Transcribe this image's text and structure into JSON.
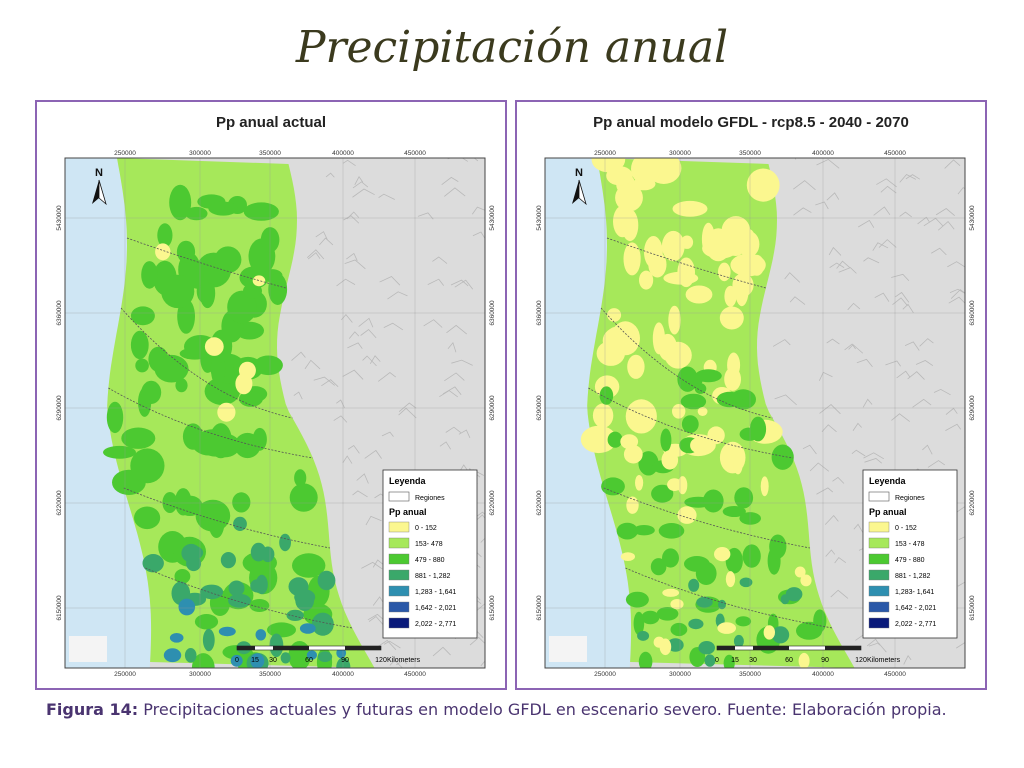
{
  "slide": {
    "title": "Precipitación anual"
  },
  "panels": [
    {
      "title": "Pp anual actual",
      "scenario": "actual",
      "x_ticks": [
        "250000",
        "300000",
        "350000",
        "400000",
        "450000"
      ],
      "y_ticks": [
        "5430000",
        "6360000",
        "6290000",
        "6220000",
        "6150000"
      ],
      "north_label": "N",
      "legend": {
        "title": "Leyenda",
        "regions_label": "Regiones",
        "section": "Pp anual",
        "classes": [
          "0 - 152",
          "153- 478",
          "479 - 880",
          "881 - 1,282",
          "1,283 - 1,641",
          "1,642 - 2,021",
          "2,022 - 2,771"
        ]
      },
      "scale_bar": {
        "ticks": [
          "0",
          "15",
          "30",
          "60",
          "90",
          "120"
        ],
        "unit": "Kilometers"
      }
    },
    {
      "title": "Pp anual modelo GFDL - rcp8.5 - 2040 - 2070",
      "scenario": "future",
      "x_ticks": [
        "250000",
        "300000",
        "350000",
        "400000",
        "450000"
      ],
      "y_ticks": [
        "5430000",
        "6360000",
        "6290000",
        "6220000",
        "6150000"
      ],
      "north_label": "N",
      "legend": {
        "title": "Leyenda",
        "regions_label": "Regiones",
        "section": "Pp anual",
        "classes": [
          "0 - 152",
          "153 - 478",
          "479 - 880",
          "881 - 1,282",
          "1,283- 1,641",
          "1,642 - 2,021",
          "2,022 - 2,771"
        ]
      },
      "scale_bar": {
        "ticks": [
          "0",
          "15",
          "30",
          "60",
          "90",
          "120"
        ],
        "unit": "Kilometers"
      }
    }
  ],
  "legend_colors": [
    "#fbf78f",
    "#a6e85a",
    "#4cc931",
    "#3aa86a",
    "#2e8fb0",
    "#2a58a8",
    "#0a1a7a"
  ],
  "map_colors": {
    "ocean": "#cfe6f4",
    "mountains": "#dcdcdc"
  },
  "caption": {
    "label": "Figura 14:",
    "text": "Precipitaciones actuales y futuras en modelo GFDL en escenario severo. Fuente: Elaboración propia."
  }
}
